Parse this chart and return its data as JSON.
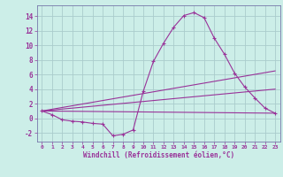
{
  "background_color": "#cceee8",
  "grid_color": "#aacccc",
  "line_color": "#993399",
  "spine_color": "#7777aa",
  "xlabel": "Windchill (Refroidissement éolien,°C)",
  "xlim": [
    -0.5,
    23.5
  ],
  "ylim": [
    -3.2,
    15.5
  ],
  "xticks": [
    0,
    1,
    2,
    3,
    4,
    5,
    6,
    7,
    8,
    9,
    10,
    11,
    12,
    13,
    14,
    15,
    16,
    17,
    18,
    19,
    20,
    21,
    22,
    23
  ],
  "yticks": [
    -2,
    0,
    2,
    4,
    6,
    8,
    10,
    12,
    14
  ],
  "line1_x": [
    0,
    1,
    2,
    3,
    4,
    5,
    6,
    7,
    8,
    9,
    10,
    11,
    12,
    13,
    14,
    15,
    16,
    17,
    18,
    19,
    20,
    21,
    22,
    23
  ],
  "line1_y": [
    1.0,
    0.5,
    -0.2,
    -0.4,
    -0.5,
    -0.7,
    -0.8,
    -2.4,
    -2.2,
    -1.6,
    3.7,
    7.8,
    10.3,
    12.5,
    14.1,
    14.5,
    13.8,
    11.0,
    8.8,
    6.2,
    4.3,
    2.8,
    1.4,
    0.7
  ],
  "line2_x": [
    0,
    23
  ],
  "line2_y": [
    1.0,
    0.7
  ],
  "line3_x": [
    0,
    23
  ],
  "line3_y": [
    1.0,
    4.0
  ],
  "line4_x": [
    0,
    23
  ],
  "line4_y": [
    1.0,
    6.5
  ],
  "figsize": [
    3.2,
    2.0
  ],
  "dpi": 100
}
